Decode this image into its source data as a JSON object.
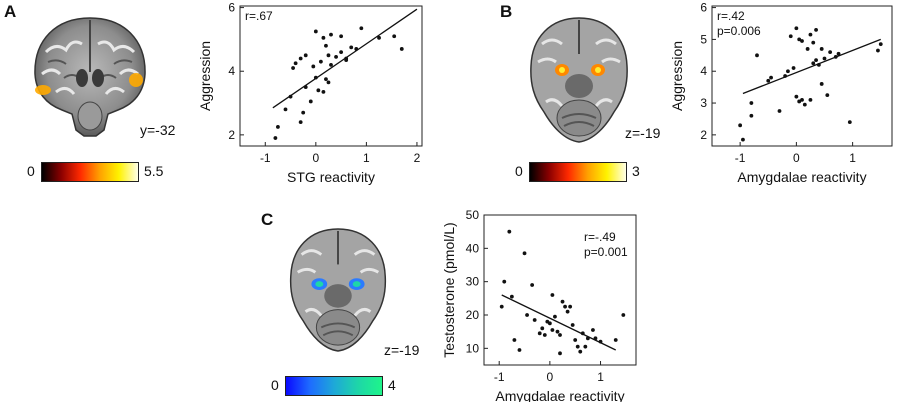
{
  "panels": {
    "A": {
      "letter": "A",
      "slice_label": "y=-32",
      "colorbar": {
        "min": "0",
        "max": "5.5",
        "colors": [
          "#000000",
          "#8b0000",
          "#ff2a00",
          "#ffa000",
          "#fff200",
          "#ffffe8"
        ]
      },
      "blob_color": "#ffaa00"
    },
    "B": {
      "letter": "B",
      "slice_label": "z=-19",
      "colorbar": {
        "min": "0",
        "max": "3",
        "colors": [
          "#000000",
          "#8b0000",
          "#ff2a00",
          "#ffa000",
          "#fff200",
          "#ffffe8"
        ]
      },
      "blob_color": "#ff8800"
    },
    "C": {
      "letter": "C",
      "slice_label": "z=-19",
      "colorbar": {
        "min": "0",
        "max": "4",
        "colors": [
          "#0a0aff",
          "#1e6cff",
          "#1ea8d8",
          "#1ed6a8",
          "#1ef58a"
        ]
      },
      "blob_color": "#2b7bff"
    }
  },
  "chart_data": [
    {
      "id": "A",
      "type": "scatter",
      "xlabel": "STG reactivity",
      "ylabel": "Aggression",
      "xlim": [
        -1.5,
        2.1
      ],
      "ylim": [
        1.65,
        6.05
      ],
      "xticks": [
        -1,
        0,
        1,
        2
      ],
      "yticks": [
        2,
        4,
        6
      ],
      "annotation": [
        "r=.67"
      ],
      "fit": {
        "x": [
          -0.85,
          2.0
        ],
        "y": [
          2.85,
          5.95
        ]
      },
      "points": [
        [
          -0.8,
          1.9
        ],
        [
          -0.75,
          2.25
        ],
        [
          -0.6,
          2.8
        ],
        [
          -0.5,
          3.2
        ],
        [
          -0.3,
          2.4
        ],
        [
          -0.25,
          2.7
        ],
        [
          -0.2,
          3.5
        ],
        [
          -0.1,
          3.05
        ],
        [
          0.0,
          3.8
        ],
        [
          0.05,
          3.4
        ],
        [
          0.15,
          3.35
        ],
        [
          0.2,
          3.75
        ],
        [
          0.25,
          3.65
        ],
        [
          -0.45,
          4.1
        ],
        [
          -0.4,
          4.25
        ],
        [
          -0.3,
          4.4
        ],
        [
          -0.2,
          4.5
        ],
        [
          -0.05,
          4.15
        ],
        [
          0.1,
          4.3
        ],
        [
          0.25,
          4.5
        ],
        [
          0.3,
          4.2
        ],
        [
          0.4,
          4.45
        ],
        [
          0.5,
          4.6
        ],
        [
          0.6,
          4.4
        ],
        [
          0.7,
          4.75
        ],
        [
          0.8,
          4.7
        ],
        [
          0.2,
          4.8
        ],
        [
          0.15,
          5.05
        ],
        [
          0.3,
          5.15
        ],
        [
          0.0,
          5.25
        ],
        [
          0.5,
          5.1
        ],
        [
          0.9,
          5.35
        ],
        [
          1.25,
          5.05
        ],
        [
          1.55,
          5.1
        ],
        [
          1.7,
          4.7
        ],
        [
          0.6,
          4.35
        ]
      ]
    },
    {
      "id": "B",
      "type": "scatter",
      "xlabel": "Amygdalae reactivity",
      "ylabel": "Aggression",
      "xlim": [
        -1.5,
        1.7
      ],
      "ylim": [
        1.65,
        6.05
      ],
      "xticks": [
        -1,
        0,
        1
      ],
      "yticks": [
        2,
        3,
        4,
        5,
        6
      ],
      "annotation": [
        "r=.42",
        "p=0.006"
      ],
      "fit": {
        "x": [
          -0.95,
          1.5
        ],
        "y": [
          3.3,
          5.0
        ]
      },
      "points": [
        [
          -1.0,
          2.3
        ],
        [
          -0.95,
          1.85
        ],
        [
          -0.8,
          2.6
        ],
        [
          -0.8,
          3.0
        ],
        [
          -0.7,
          4.5
        ],
        [
          -0.5,
          3.7
        ],
        [
          -0.45,
          3.8
        ],
        [
          -0.3,
          2.75
        ],
        [
          -0.2,
          3.85
        ],
        [
          -0.15,
          4.0
        ],
        [
          -0.05,
          4.1
        ],
        [
          0.0,
          3.2
        ],
        [
          0.05,
          3.05
        ],
        [
          0.1,
          3.1
        ],
        [
          0.15,
          2.95
        ],
        [
          0.25,
          3.1
        ],
        [
          0.3,
          4.25
        ],
        [
          0.35,
          4.35
        ],
        [
          0.4,
          4.2
        ],
        [
          0.45,
          3.6
        ],
        [
          0.5,
          4.4
        ],
        [
          0.55,
          3.25
        ],
        [
          0.6,
          4.6
        ],
        [
          0.7,
          4.45
        ],
        [
          0.75,
          4.55
        ],
        [
          -0.1,
          5.1
        ],
        [
          0.0,
          5.35
        ],
        [
          0.05,
          5.0
        ],
        [
          0.1,
          4.95
        ],
        [
          0.2,
          4.7
        ],
        [
          0.25,
          5.15
        ],
        [
          0.35,
          5.3
        ],
        [
          0.45,
          4.7
        ],
        [
          0.95,
          2.4
        ],
        [
          1.45,
          4.65
        ],
        [
          1.5,
          4.85
        ],
        [
          0.3,
          4.9
        ]
      ]
    },
    {
      "id": "C",
      "type": "scatter",
      "xlabel": "Amygdalae reactivity",
      "ylabel": "Testosterone (pmol/L)",
      "xlim": [
        -1.3,
        1.7
      ],
      "ylim": [
        5,
        50
      ],
      "xticks": [
        -1,
        0,
        1
      ],
      "yticks": [
        10,
        20,
        30,
        40,
        50
      ],
      "annotation": [
        "r=-.49",
        "p=0.001"
      ],
      "fit": {
        "x": [
          -0.95,
          1.3
        ],
        "y": [
          26,
          9.5
        ]
      },
      "points": [
        [
          -0.95,
          22.5
        ],
        [
          -0.9,
          30
        ],
        [
          -0.8,
          45
        ],
        [
          -0.75,
          25.5
        ],
        [
          -0.7,
          12.5
        ],
        [
          -0.5,
          38.5
        ],
        [
          -0.45,
          20
        ],
        [
          -0.35,
          29
        ],
        [
          -0.3,
          18.5
        ],
        [
          -0.2,
          14.5
        ],
        [
          -0.15,
          16
        ],
        [
          -0.1,
          14
        ],
        [
          -0.05,
          18
        ],
        [
          0.0,
          17.5
        ],
        [
          0.05,
          26
        ],
        [
          0.1,
          19.5
        ],
        [
          0.15,
          15
        ],
        [
          0.2,
          14
        ],
        [
          0.25,
          24
        ],
        [
          0.3,
          22.5
        ],
        [
          0.35,
          21
        ],
        [
          0.4,
          22.5
        ],
        [
          0.45,
          17
        ],
        [
          0.5,
          12.5
        ],
        [
          0.55,
          10.5
        ],
        [
          0.6,
          9
        ],
        [
          0.65,
          14.5
        ],
        [
          0.7,
          10.5
        ],
        [
          0.75,
          13
        ],
        [
          0.85,
          15.5
        ],
        [
          0.9,
          13
        ],
        [
          1.0,
          12
        ],
        [
          1.3,
          12.5
        ],
        [
          1.45,
          20
        ],
        [
          -0.6,
          9.5
        ],
        [
          0.2,
          8.5
        ],
        [
          0.05,
          15.5
        ]
      ]
    }
  ]
}
